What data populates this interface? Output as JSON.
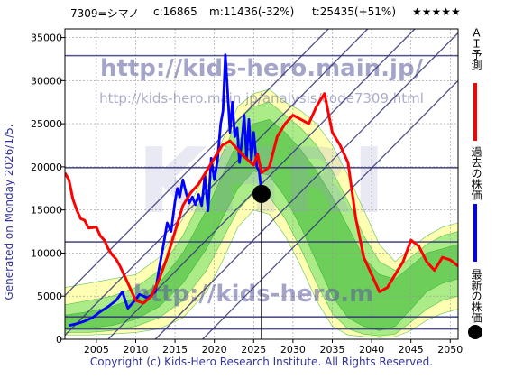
{
  "header": {
    "ticker": "7309=シマノ",
    "current": "c:16865",
    "min_label": "m:11436(-32%)",
    "target_label": "t:25435(+51%)",
    "stars": "★★★★★"
  },
  "side_label": "Generated on Monday 2026/1/5.",
  "footer": "Copyright (c) Kids-Hero Research Institute. All Rights Reserved.",
  "watermarks": {
    "url1": "http://kids-hero.main.jp/",
    "url2": "http://kids-hero.main.jp/analysis/code7309.html",
    "big": "KHRI",
    "url3": "http://kids-hero.m"
  },
  "legend": {
    "forecast": "ＡＩ予測",
    "past": "過去の株価",
    "latest": "最新の株価"
  },
  "colors": {
    "forecast": "#ff0000",
    "past": "#0000ff",
    "latest": "#000000",
    "band_light": "#ffffb0",
    "band_green": "#66dd66",
    "band_dark": "#22aa22",
    "horizontal": "#333377",
    "diagonal": "#333377"
  },
  "chart_data": {
    "type": "line",
    "xlim": [
      2001,
      2051
    ],
    "ylim": [
      0,
      36000
    ],
    "x_ticks": [
      2005,
      2010,
      2015,
      2020,
      2025,
      2030,
      2035,
      2040,
      2045,
      2050
    ],
    "y_ticks": [
      0,
      5000,
      10000,
      15000,
      20000,
      25000,
      30000,
      35000
    ],
    "grid": true,
    "horizontal_levels": [
      1200,
      2600,
      11300,
      19900,
      32900
    ],
    "latest_point": {
      "x": 2026.0,
      "y": 16865
    },
    "latest_vertical_line": 2026.0,
    "diagonals": [
      {
        "x0": 1995.5,
        "y0": 0,
        "x1": 2034.5,
        "y1": 36000
      },
      {
        "x0": 2000.5,
        "y0": 0,
        "x1": 2039.5,
        "y1": 36000
      },
      {
        "x0": 2006.5,
        "y0": 0,
        "x1": 2045.5,
        "y1": 36000
      },
      {
        "x0": 2012.5,
        "y0": 0,
        "x1": 2051.5,
        "y1": 36000
      },
      {
        "x0": 2018.5,
        "y0": 0,
        "x1": 2057.5,
        "y1": 36000
      }
    ],
    "series": [
      {
        "name": "過去の株価",
        "x": [
          2001.5,
          2002.5,
          2003.5,
          2004.5,
          2005.5,
          2006.5,
          2007.5,
          2008.3,
          2009.0,
          2009.8,
          2010.5,
          2011.5,
          2012.5,
          2013.0,
          2013.5,
          2014.0,
          2014.5,
          2015.0,
          2015.3,
          2015.6,
          2016.0,
          2016.4,
          2016.8,
          2017.2,
          2017.6,
          2018.0,
          2018.4,
          2018.8,
          2019.2,
          2019.6,
          2020.0,
          2020.4,
          2020.8,
          2021.1,
          2021.4,
          2021.7,
          2022.0,
          2022.3,
          2022.6,
          2022.9,
          2023.2,
          2023.5,
          2023.8,
          2024.1,
          2024.4,
          2024.7,
          2025.0,
          2025.4,
          2025.7,
          2026.0
        ],
        "y": [
          1600,
          1800,
          2100,
          2500,
          3200,
          3800,
          4500,
          5500,
          3600,
          4400,
          5200,
          4800,
          5500,
          8300,
          10800,
          13500,
          12500,
          16000,
          17500,
          16500,
          18500,
          17000,
          15800,
          16500,
          15600,
          16800,
          15500,
          19000,
          14900,
          21000,
          18500,
          20800,
          25000,
          26500,
          33000,
          28500,
          24000,
          27500,
          23500,
          24500,
          20500,
          23000,
          26000,
          21000,
          25500,
          20800,
          24000,
          20000,
          19500,
          16865
        ]
      },
      {
        "name": "ＡＩ予測",
        "x": [
          2001.0,
          2001.5,
          2002.0,
          2002.5,
          2003.0,
          2003.5,
          2004.0,
          2005.0,
          2005.5,
          2006.0,
          2006.5,
          2007.0,
          2007.5,
          2008.0,
          2009.0,
          2010.0,
          2011.0,
          2012.0,
          2013.0,
          2014.0,
          2015.0,
          2016.0,
          2017.0,
          2018.0,
          2019.0,
          2020.0,
          2021.0,
          2022.0,
          2023.0,
          2024.0,
          2025.0,
          2025.5,
          2026.0,
          2027.0,
          2028.0,
          2029.0,
          2030.0,
          2031.0,
          2032.0,
          2033.0,
          2034.0,
          2035.0,
          2036.0,
          2037.0,
          2038.0,
          2039.0,
          2040.0,
          2041.0,
          2042.0,
          2043.0,
          2044.0,
          2045.0,
          2046.0,
          2047.0,
          2048.0,
          2049.0,
          2050.0,
          2051.0
        ],
        "y": [
          19300,
          18500,
          16300,
          15000,
          14000,
          13800,
          12900,
          13000,
          12000,
          11500,
          10500,
          9800,
          9300,
          8500,
          6500,
          4500,
          4200,
          5000,
          7000,
          9500,
          12500,
          15500,
          17000,
          18000,
          19500,
          21000,
          22500,
          23000,
          22000,
          21000,
          20200,
          21500,
          19300,
          20000,
          23500,
          25000,
          26000,
          25500,
          25000,
          27000,
          28500,
          24000,
          22500,
          20500,
          14000,
          9500,
          7500,
          5500,
          6000,
          7500,
          9000,
          11500,
          10800,
          9000,
          8000,
          9500,
          9200,
          8500
        ]
      }
    ],
    "bands": [
      {
        "name": "light",
        "x": [
          2001,
          2004,
          2007,
          2010,
          2013,
          2016,
          2019,
          2021,
          2023,
          2025,
          2027,
          2029,
          2031,
          2033,
          2035,
          2037,
          2039,
          2041,
          2043,
          2045,
          2047,
          2049,
          2051
        ],
        "upper": [
          6000,
          6500,
          7000,
          7500,
          9500,
          14000,
          19500,
          23000,
          27000,
          28500,
          29000,
          27500,
          26500,
          25000,
          22500,
          19000,
          15000,
          11000,
          9000,
          10500,
          12000,
          13000,
          13500
        ],
        "lower": [
          500,
          500,
          600,
          800,
          1200,
          2500,
          5500,
          9000,
          13000,
          15000,
          14500,
          12000,
          8500,
          4500,
          1500,
          500,
          300,
          200,
          300,
          1000,
          2200,
          3000,
          3500
        ]
      },
      {
        "name": "green",
        "x": [
          2001,
          2004,
          2007,
          2010,
          2013,
          2016,
          2019,
          2021,
          2023,
          2025,
          2027,
          2029,
          2031,
          2033,
          2035,
          2037,
          2039,
          2041,
          2043,
          2045,
          2047,
          2049,
          2051
        ],
        "upper": [
          4000,
          4500,
          5000,
          6000,
          8000,
          12000,
          17500,
          21500,
          25500,
          27000,
          27500,
          26000,
          24500,
          22500,
          19500,
          16000,
          12000,
          9000,
          8000,
          9500,
          11000,
          12000,
          12500
        ],
        "lower": [
          800,
          800,
          1000,
          1500,
          2500,
          4500,
          8000,
          11500,
          15000,
          17000,
          16500,
          14000,
          10500,
          6500,
          3000,
          1200,
          600,
          400,
          600,
          2000,
          3500,
          4500,
          5000
        ]
      },
      {
        "name": "dark",
        "x": [
          2001,
          2004,
          2007,
          2010,
          2013,
          2016,
          2019,
          2021,
          2023,
          2025,
          2027,
          2029,
          2031,
          2033,
          2035,
          2037,
          2039,
          2041,
          2043,
          2045,
          2047,
          2049,
          2051
        ],
        "upper": [
          2800,
          3200,
          3800,
          4800,
          6500,
          10000,
          15000,
          19000,
          23000,
          25000,
          25500,
          24000,
          22000,
          19500,
          16500,
          13000,
          9500,
          7500,
          7000,
          8500,
          10000,
          10500,
          11000
        ],
        "lower": [
          1200,
          1300,
          1600,
          2300,
          3800,
          6500,
          10500,
          14000,
          17500,
          19500,
          19000,
          16500,
          13000,
          9000,
          5000,
          2500,
          1500,
          1000,
          1500,
          3500,
          5500,
          6500,
          7000
        ]
      }
    ]
  }
}
